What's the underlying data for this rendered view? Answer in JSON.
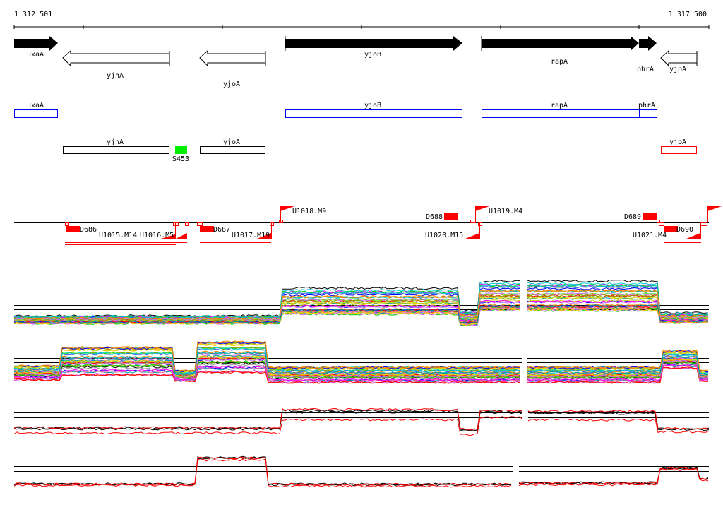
{
  "ruler": {
    "start_label": "1 312 501",
    "end_label": "1 317 500"
  },
  "genes": {
    "uxaA": "uxaA",
    "yjnA": "yjnA",
    "yjoA": "yjoA",
    "yjoB": "yjoB",
    "rapA": "rapA",
    "phrA": "phrA",
    "yjpA": "yjpA"
  },
  "features": {
    "S453": "S453"
  },
  "transcripts": {
    "D686": "D686",
    "D687": "D687",
    "D688": "D688",
    "D689": "D689",
    "D690": "D690",
    "U1015": "U1015.M14",
    "U1016": "U1016.M5",
    "U1017": "U1017.M19",
    "U1018": "U1018.M9",
    "U1019": "U1019.M4",
    "U1020": "U1020.M15",
    "U1021": "U1021.M4"
  },
  "colors": {
    "forward": "#0000ff",
    "reverse": "#ff0000",
    "feature": "#00ee00",
    "transcript": "#ff0000"
  }
}
